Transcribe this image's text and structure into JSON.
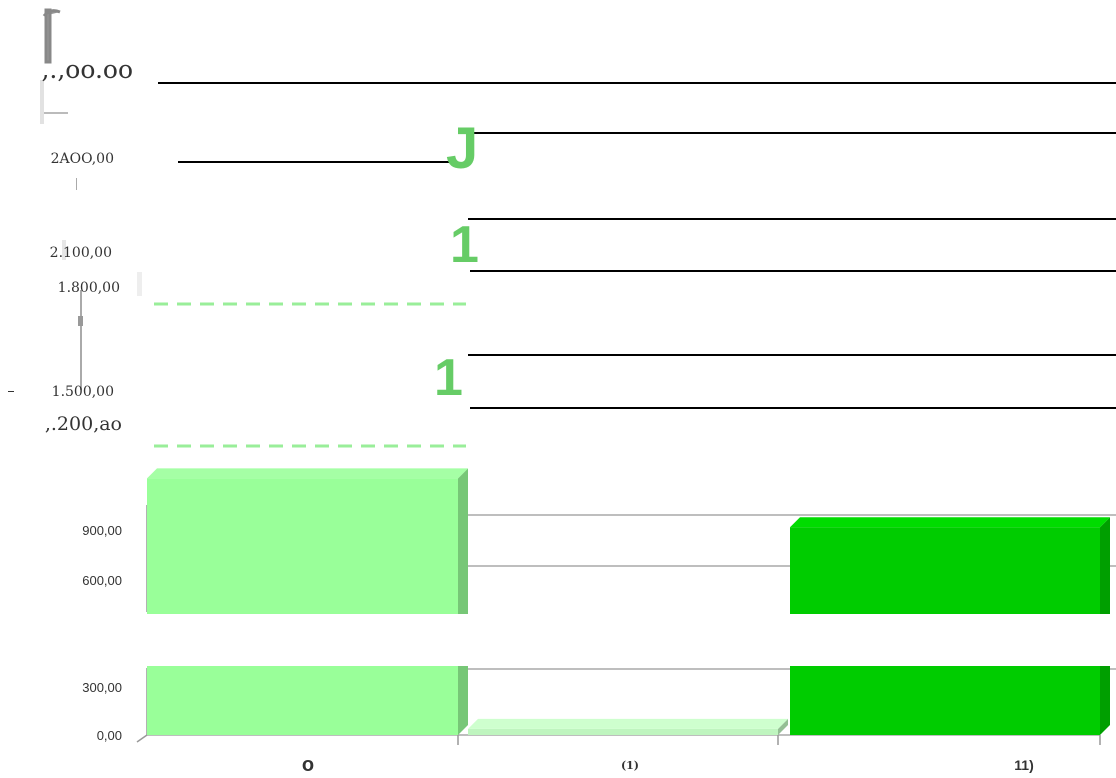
{
  "chart_data": {
    "type": "bar",
    "title": "",
    "xlabel": "",
    "ylabel": "",
    "ylim": [
      0,
      3000
    ],
    "grid": true,
    "legend": "none",
    "y_ticks": [
      {
        "value": 0,
        "label": "0,00"
      },
      {
        "value": 300,
        "label": "300,00"
      },
      {
        "value": 600,
        "label": "600,00"
      },
      {
        "value": 900,
        "label": "900,00"
      },
      {
        "value": 1200,
        "label": ",.200,ao"
      },
      {
        "value": 1500,
        "label": "1.500,00"
      },
      {
        "value": 1800,
        "label": "1.800,00"
      },
      {
        "value": 2100,
        "label": "2.100,00"
      },
      {
        "value": 2400,
        "label": "2AOO,00"
      },
      {
        "value": 2700,
        "label": ",.,oo.oo"
      }
    ],
    "categories": [
      "o",
      "(1)",
      "11)"
    ],
    "values": [
      1050,
      25,
      850
    ],
    "colors": [
      "#99ff99",
      "#bff5bf",
      "#00cc00"
    ],
    "glyph_labels": [
      "J",
      "1",
      "1"
    ],
    "glyph_color": "#66cc66"
  }
}
